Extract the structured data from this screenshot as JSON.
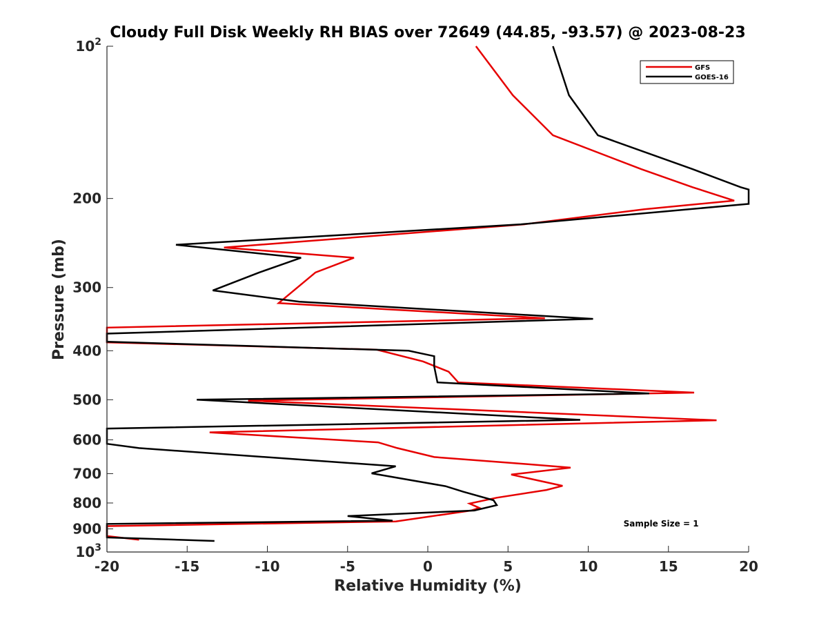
{
  "chart_data": {
    "type": "line",
    "title": "Cloudy Full Disk Weekly RH BIAS over 72649 (44.85, -93.57) @ 2023-08-23",
    "xlabel": "Relative Humidity (%)",
    "ylabel": "Pressure (mb)",
    "xlim": [
      -20,
      20
    ],
    "ylim": [
      100,
      1000
    ],
    "y_scale": "log",
    "y_reversed": true,
    "grid": false,
    "legend_position": "top-right",
    "x_ticks": [
      -20,
      -15,
      -10,
      -5,
      0,
      5,
      10,
      15,
      20
    ],
    "x_tick_labels": [
      "-20",
      "-15",
      "-10",
      "-5",
      "0",
      "5",
      "10",
      "15",
      "20"
    ],
    "y_ticks": [
      100,
      200,
      300,
      400,
      500,
      600,
      700,
      800,
      900,
      1000
    ],
    "y_tick_labels": [
      {
        "base": "10",
        "exp": "2"
      },
      {
        "base": "200",
        "exp": ""
      },
      {
        "base": "300",
        "exp": ""
      },
      {
        "base": "400",
        "exp": ""
      },
      {
        "base": "500",
        "exp": ""
      },
      {
        "base": "600",
        "exp": ""
      },
      {
        "base": "700",
        "exp": ""
      },
      {
        "base": "800",
        "exp": ""
      },
      {
        "base": "900",
        "exp": ""
      },
      {
        "base": "10",
        "exp": "3"
      }
    ],
    "series": [
      {
        "name": "GFS",
        "color": "#e60000",
        "points": [
          [
            3.0,
            100
          ],
          [
            5.3,
            125
          ],
          [
            7.8,
            150
          ],
          [
            13.3,
            175
          ],
          [
            16.5,
            190
          ],
          [
            19.1,
            202
          ],
          [
            13.5,
            210
          ],
          [
            6.0,
            225
          ],
          [
            -12.7,
            250
          ],
          [
            -4.6,
            262
          ],
          [
            -7.0,
            280
          ],
          [
            -9.3,
            322
          ],
          [
            7.3,
            345
          ],
          [
            -20,
            360
          ],
          [
            -20,
            385
          ],
          [
            -3.2,
            398
          ],
          [
            -0.3,
            420
          ],
          [
            1.3,
            440
          ],
          [
            1.9,
            462
          ],
          [
            16.6,
            484
          ],
          [
            -11.2,
            502
          ],
          [
            18.0,
            549
          ],
          [
            -13.6,
            580
          ],
          [
            -3.1,
            607
          ],
          [
            -1.9,
            623
          ],
          [
            0.4,
            649
          ],
          [
            6.1,
            670
          ],
          [
            8.9,
            681
          ],
          [
            5.2,
            703
          ],
          [
            8.4,
            740
          ],
          [
            7.4,
            754
          ],
          [
            4.3,
            781
          ],
          [
            2.6,
            802
          ],
          [
            3.2,
            818
          ],
          [
            2.7,
            828
          ],
          [
            -2.0,
            870
          ],
          [
            -20,
            889
          ],
          [
            -20,
            930
          ],
          [
            -18.0,
            946
          ]
        ]
      },
      {
        "name": "GOES-16",
        "color": "#000000",
        "points": [
          [
            7.8,
            100
          ],
          [
            8.8,
            125
          ],
          [
            10.6,
            150
          ],
          [
            16.5,
            175
          ],
          [
            19.5,
            190
          ],
          [
            20.0,
            192
          ],
          [
            20.0,
            205
          ],
          [
            5.8,
            225
          ],
          [
            -15.7,
            247
          ],
          [
            -7.9,
            262
          ],
          [
            -10.5,
            280
          ],
          [
            -13.4,
            304
          ],
          [
            -8.0,
            320
          ],
          [
            10.3,
            346
          ],
          [
            -20,
            370
          ],
          [
            -20,
            384
          ],
          [
            -1.2,
            400
          ],
          [
            0.4,
            410
          ],
          [
            0.4,
            430
          ],
          [
            0.6,
            462
          ],
          [
            13.8,
            486
          ],
          [
            -14.4,
            500
          ],
          [
            9.5,
            548
          ],
          [
            -20,
            570
          ],
          [
            -20,
            611
          ],
          [
            -18.0,
            623
          ],
          [
            -2.0,
            677
          ],
          [
            -3.5,
            699
          ],
          [
            1.1,
            741
          ],
          [
            2.2,
            760
          ],
          [
            4.1,
            790
          ],
          [
            4.3,
            808
          ],
          [
            2.9,
            828
          ],
          [
            -5.0,
            849
          ],
          [
            -2.2,
            867
          ],
          [
            -20,
            880
          ],
          [
            -20,
            936
          ],
          [
            -13.3,
            951
          ]
        ]
      }
    ],
    "annotations": [
      {
        "text": "Sample Size = 1",
        "x": 12.2,
        "y": 890
      }
    ]
  }
}
